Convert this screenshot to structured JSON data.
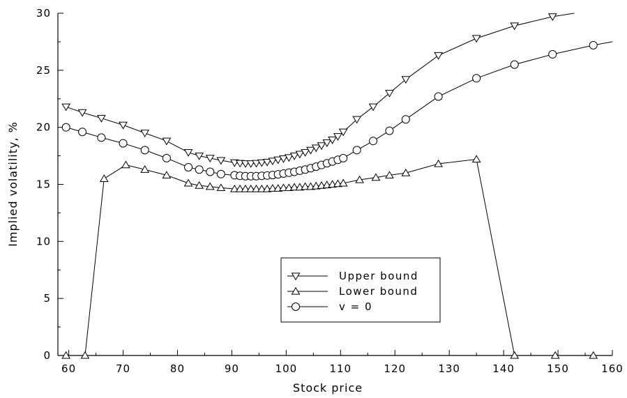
{
  "chart_data": {
    "type": "line",
    "title": "",
    "xlabel": "Stock price",
    "ylabel": "Implied volatility, %",
    "xlim": [
      58,
      160
    ],
    "ylim": [
      0,
      30
    ],
    "xticks": [
      60,
      70,
      80,
      90,
      100,
      110,
      120,
      130,
      140,
      150,
      160
    ],
    "yticks": [
      0,
      5,
      10,
      15,
      20,
      25,
      30
    ],
    "grid": false,
    "legend_position": "lower-center",
    "series": [
      {
        "name": "Upper bound",
        "marker": "triangle-down",
        "x": [
          59.5,
          62.5,
          66,
          70,
          74,
          78,
          82,
          84,
          86,
          88,
          90.5,
          91.5,
          92.5,
          93.5,
          94.5,
          95.5,
          96.5,
          97.5,
          98.5,
          99.5,
          100.5,
          101.5,
          102.5,
          103.5,
          104.5,
          105.5,
          106.5,
          107.5,
          108.5,
          109.5,
          110.5,
          113,
          116,
          119,
          122,
          128,
          135,
          142,
          149,
          153
        ],
        "y": [
          21.8,
          21.3,
          20.8,
          20.2,
          19.5,
          18.8,
          17.8,
          17.5,
          17.3,
          17.1,
          16.9,
          16.85,
          16.82,
          16.82,
          16.85,
          16.9,
          16.95,
          17.05,
          17.15,
          17.25,
          17.35,
          17.5,
          17.65,
          17.8,
          18.0,
          18.2,
          18.4,
          18.65,
          18.9,
          19.2,
          19.6,
          20.7,
          21.8,
          23.0,
          24.2,
          26.3,
          27.8,
          28.9,
          29.7,
          30.0
        ]
      },
      {
        "name": "Lower bound",
        "marker": "triangle-up",
        "x": [
          59.5,
          63,
          66.5,
          70.5,
          74,
          78,
          82,
          84,
          86,
          88,
          90.5,
          91.5,
          92.5,
          93.5,
          94.5,
          95.5,
          96.5,
          97.5,
          98.5,
          99.5,
          100.5,
          101.5,
          102.5,
          103.5,
          104.5,
          105.5,
          106.5,
          107.5,
          108.5,
          109.5,
          110.5,
          113.5,
          116.5,
          119,
          122,
          128,
          135,
          142,
          149.5,
          156.5
        ],
        "y": [
          0,
          0,
          15.5,
          16.7,
          16.3,
          15.8,
          15.1,
          14.9,
          14.8,
          14.7,
          14.6,
          14.6,
          14.6,
          14.6,
          14.6,
          14.6,
          14.6,
          14.65,
          14.65,
          14.7,
          14.7,
          14.75,
          14.75,
          14.8,
          14.8,
          14.85,
          14.9,
          14.95,
          15.0,
          15.05,
          15.1,
          15.4,
          15.6,
          15.8,
          16.0,
          16.8,
          17.2,
          0,
          0,
          0
        ]
      },
      {
        "name": "v = 0",
        "marker": "circle",
        "x": [
          59.5,
          62.5,
          66,
          70,
          74,
          78,
          82,
          84,
          86,
          88,
          90.5,
          91.5,
          92.5,
          93.5,
          94.5,
          95.5,
          96.5,
          97.5,
          98.5,
          99.5,
          100.5,
          101.5,
          102.5,
          103.5,
          104.5,
          105.5,
          106.5,
          107.5,
          108.5,
          109.5,
          110.5,
          113,
          116,
          119,
          122,
          128,
          135,
          142,
          149,
          156.5,
          160
        ],
        "y": [
          20.0,
          19.6,
          19.1,
          18.6,
          18.0,
          17.3,
          16.5,
          16.3,
          16.1,
          15.9,
          15.8,
          15.75,
          15.72,
          15.72,
          15.72,
          15.75,
          15.78,
          15.82,
          15.88,
          15.95,
          16.02,
          16.1,
          16.2,
          16.3,
          16.42,
          16.55,
          16.7,
          16.85,
          17.0,
          17.15,
          17.3,
          18.0,
          18.8,
          19.7,
          20.7,
          22.7,
          24.3,
          25.5,
          26.4,
          27.2,
          27.5
        ]
      }
    ],
    "legend": {
      "entries": [
        "Upper bound",
        "Lower bound",
        "v = 0"
      ]
    }
  }
}
